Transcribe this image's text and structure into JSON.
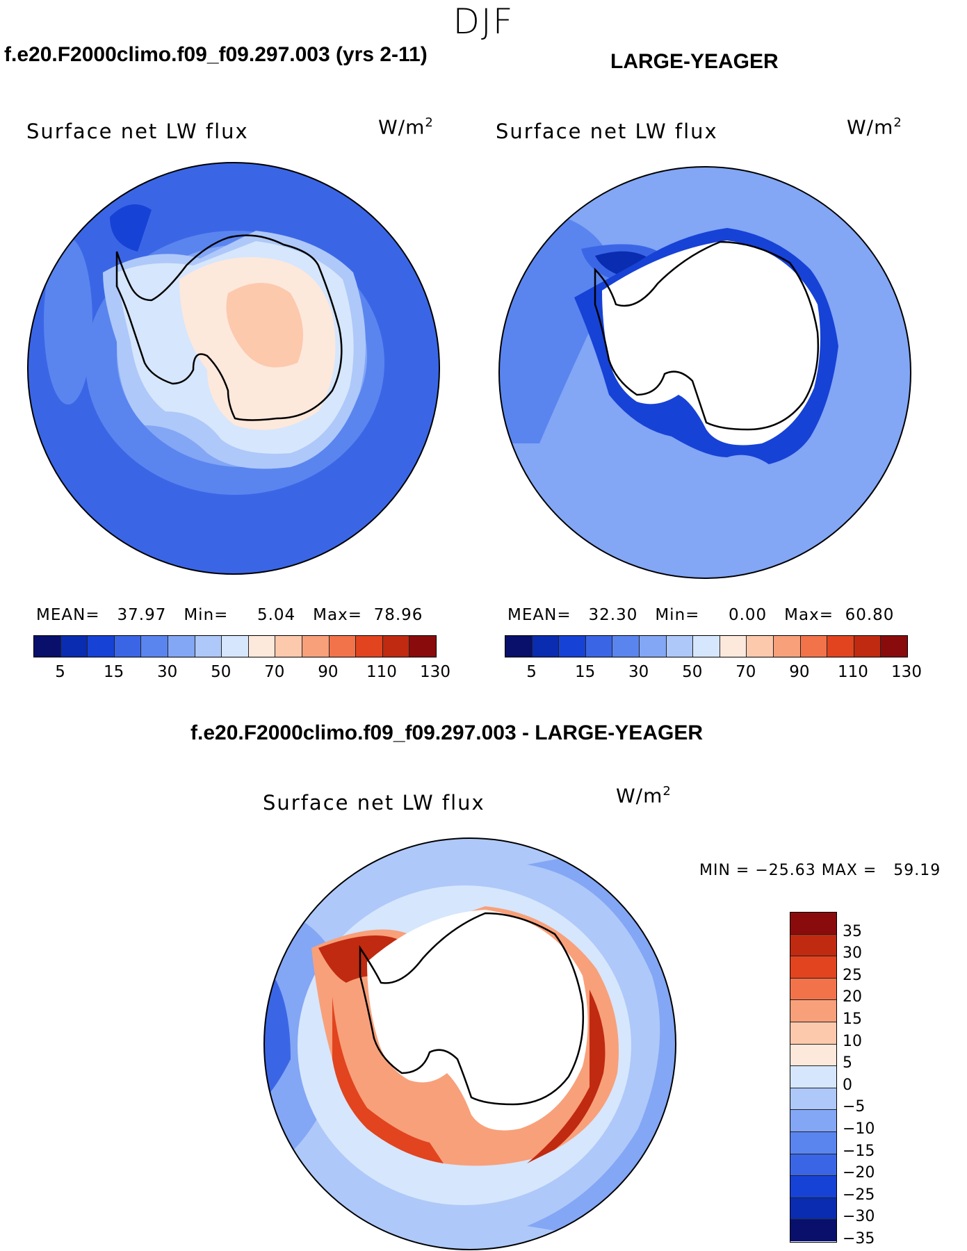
{
  "season": "DJF",
  "panels": {
    "left": {
      "case_title": "f.e20.F2000climo.f09_f09.297.003 (yrs 2-11)",
      "variable": "Surface net LW flux",
      "units_base": "W/m",
      "units_exp": "2",
      "stats": {
        "mean_label": "MEAN=",
        "mean": "37.97",
        "min_label": "Min=",
        "min": "5.04",
        "max_label": "Max=",
        "max": "78.96"
      }
    },
    "right": {
      "case_title": "LARGE-YEAGER",
      "variable": "Surface net LW flux",
      "units_base": "W/m",
      "units_exp": "2",
      "stats": {
        "mean_label": "MEAN=",
        "mean": "32.30",
        "min_label": "Min=",
        "min": "0.00",
        "max_label": "Max=",
        "max": "60.80"
      }
    },
    "diff": {
      "case_title": "f.e20.F2000climo.f09_f09.297.003 - LARGE-YEAGER",
      "variable": "Surface net LW flux",
      "units_base": "W/m",
      "units_exp": "2",
      "stats_line": "MIN = −25.63 MAX =   59.19"
    }
  },
  "colorbar_main": {
    "colors": [
      "#08106b",
      "#0a2cb0",
      "#1742d6",
      "#3a66e6",
      "#5a85ef",
      "#83a6f5",
      "#aec8f9",
      "#d6e6fc",
      "#fde8dc",
      "#fcc9ad",
      "#f8a07a",
      "#f2734a",
      "#e1441f",
      "#c02a10",
      "#8a0b0b"
    ],
    "tick_labels": [
      "5",
      "15",
      "30",
      "50",
      "70",
      "90",
      "110",
      "130"
    ]
  },
  "colorbar_diff": {
    "colors": [
      "#8a0b0b",
      "#c02a10",
      "#e1441f",
      "#f2734a",
      "#f8a07a",
      "#fcc9ad",
      "#fde8dc",
      "#d6e6fc",
      "#aec8f9",
      "#83a6f5",
      "#5a85ef",
      "#3a66e6",
      "#1742d6",
      "#0a2cb0",
      "#08106b"
    ],
    "labels": [
      "35",
      "30",
      "25",
      "20",
      "15",
      "10",
      "5",
      "0",
      "−5",
      "−10",
      "−15",
      "−20",
      "−25",
      "−30",
      "−35"
    ]
  },
  "map_colors": {
    "ocean_dark": "#3a66e6",
    "ocean_mid": "#5a85ef",
    "ocean_light": "#83a6f5",
    "ice_pale": "#aec8f9",
    "ice_paler": "#d6e6fc",
    "land_warm": "#fde8dc",
    "land_warmer": "#fcc9ad",
    "coastal_deep": "#1742d6",
    "coastal_deeper": "#0a2cb0",
    "diff_hot": "#c02a10",
    "diff_warm": "#e1441f",
    "diff_mid": "#f8a07a",
    "diff_pale": "#fcc9ad"
  }
}
